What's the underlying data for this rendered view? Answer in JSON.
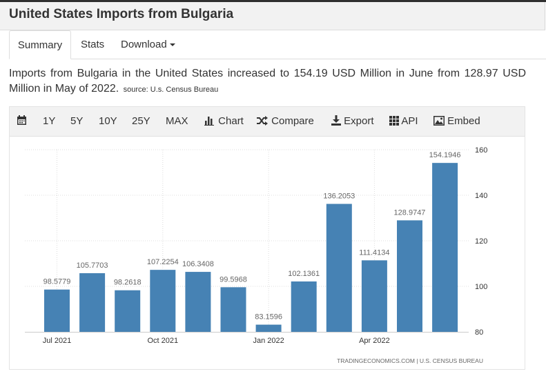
{
  "header": {
    "title": "United States Imports from Bulgaria"
  },
  "tabs": [
    {
      "label": "Summary"
    },
    {
      "label": "Stats"
    },
    {
      "label": "Download"
    }
  ],
  "description": {
    "text": "Imports from Bulgaria in the United States increased to 154.19 USD Million in June from 128.97 USD Million in May of 2022.",
    "source": "source: U.s. Census Bureau"
  },
  "toolbar": {
    "ranges": [
      "1Y",
      "5Y",
      "10Y",
      "25Y",
      "MAX"
    ],
    "chart_label": "Chart",
    "compare_label": "Compare",
    "export_label": "Export",
    "api_label": "API",
    "embed_label": "Embed",
    "icons": [
      "calendar-icon",
      "bar-chart-icon",
      "shuffle-icon",
      "download-icon",
      "grid-icon",
      "image-icon"
    ]
  },
  "chart_data": {
    "type": "bar",
    "categories": [
      "Jul 2021",
      "Aug 2021",
      "Sep 2021",
      "Oct 2021",
      "Nov 2021",
      "Dec 2021",
      "Jan 2022",
      "Feb 2022",
      "Mar 2022",
      "Apr 2022",
      "May 2022",
      "Jun 2022"
    ],
    "values": [
      98.5779,
      105.7703,
      98.2618,
      107.2254,
      106.3408,
      99.5968,
      83.1596,
      102.1361,
      136.2053,
      111.4134,
      128.9747,
      154.1946
    ],
    "value_labels": [
      "98.5779",
      "105.7703",
      "98.2618",
      "107.2254",
      "106.3408",
      "99.5968",
      "83.1596",
      "102.1361",
      "136.2053",
      "111.4134",
      "128.9747",
      "154.1946"
    ],
    "x_tick_labels": [
      {
        "index": 0,
        "label": "Jul 2021"
      },
      {
        "index": 3,
        "label": "Oct 2021"
      },
      {
        "index": 6,
        "label": "Jan 2022"
      },
      {
        "index": 9,
        "label": "Apr 2022"
      }
    ],
    "y_ticks": [
      80,
      100,
      120,
      140,
      160
    ],
    "ylim": [
      80,
      160
    ],
    "y_axis_side": "right",
    "grid": "dotted",
    "bar_color": "#4682b4",
    "credit": "TRADINGECONOMICS.COM  |  U.S. CENSUS BUREAU"
  }
}
